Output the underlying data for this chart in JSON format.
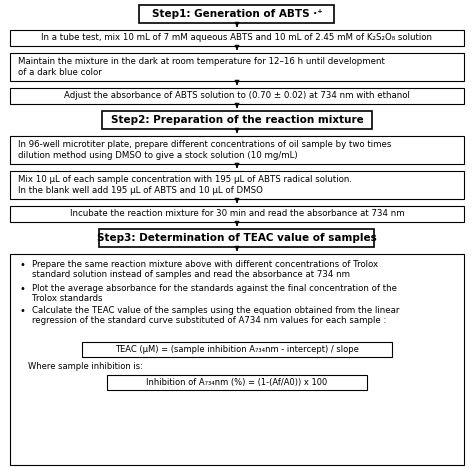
{
  "bg_color": "#ffffff",
  "text_color": "#000000",
  "step1_title": "Step1: Generation of ABTS ·⁺",
  "step2_title": "Step2: Preparation of the reaction mixture",
  "step3_title": "Step3: Determination of TEAC value of samples",
  "box1_text": "In a tube test, mix 10 mL of 7 mM aqueous ABTS and 10 mL of 2.45 mM of K₂S₂O₈ solution",
  "box2_text": "Maintain the mixture in the dark at room temperature for 12–16 h until development\nof a dark blue color",
  "box3_text": "Adjust the absorbance of ABTS solution to (0.70 ± 0.02) at 734 nm with ethanol",
  "box4_text": "In 96-well microtiter plate, prepare different concentrations of oil sample by two times\ndilution method using DMSO to give a stock solution (10 mg/mL)",
  "box5_text": "Mix 10 μL of each sample concentration with 195 μL of ABTS radical solution.\nIn the blank well add 195 μL of ABTS and 10 μL of DMSO",
  "box6_text": "Incubate the reaction mixture for 30 min and read the absorbance at 734 nm",
  "bullet1": "Prepare the same reaction mixture above with different concentrations of Trolox\nstandard solution instead of samples and read the absorbance at 734 nm",
  "bullet2": "Plot the average absorbance for the standards against the final concentration of the\nTrolox standards",
  "bullet3": "Calculate the TEAC value of the samples using the equation obtained from the linear\nregression of the standard curve substituted of A734 nm values for each sample :",
  "formula1": "TEAC (μM) = (sample inhibition A₇₃₄nm - intercept) / slope",
  "where_text": "Where sample inhibition is:",
  "formula2": "Inhibition of A₇₃₄nm (%) = (1-(Af/A0)) x 100"
}
